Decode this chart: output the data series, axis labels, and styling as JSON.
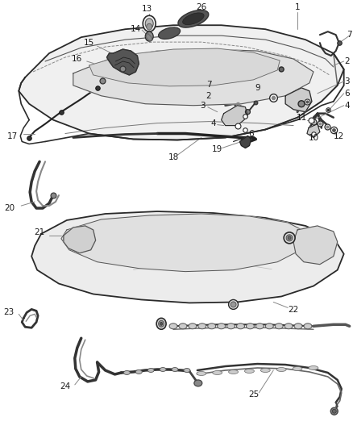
{
  "bg_color": "#ffffff",
  "fig_width": 4.38,
  "fig_height": 5.33,
  "dpi": 100,
  "line_color": "#2a2a2a",
  "text_color": "#1a1a1a",
  "font_size": 7.5
}
